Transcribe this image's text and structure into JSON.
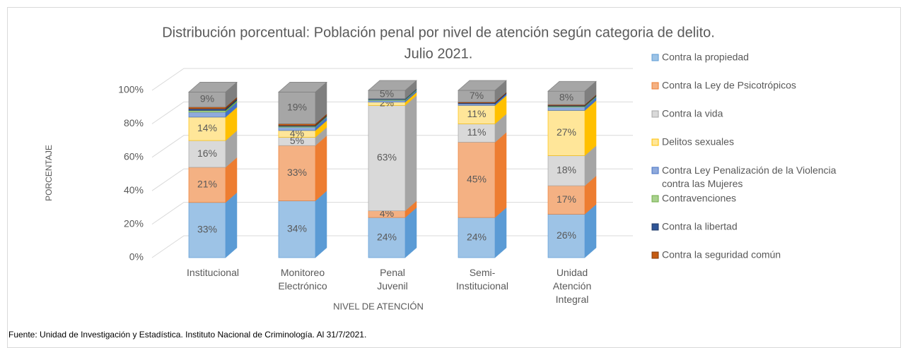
{
  "chart_data": {
    "type": "bar3d_stacked",
    "title": [
      "Distribución porcentual: Población penal por nivel de atención según categoria de delito.",
      "Julio 2021."
    ],
    "xlabel": "NIVEL DE ATENCIÓN",
    "ylabel": "PORCENTAJE",
    "categories": [
      "Institucional",
      "Monitoreo Electrónico",
      "Penal Juvenil",
      "Semi-Institucional",
      "Unidad Atención Integral"
    ],
    "ylim": [
      0,
      100
    ],
    "yticks": [
      {
        "value": 0,
        "label": "0%"
      },
      {
        "value": 20,
        "label": "20%"
      },
      {
        "value": 40,
        "label": "40%"
      },
      {
        "value": 60,
        "label": "60%"
      },
      {
        "value": 80,
        "label": "80%"
      },
      {
        "value": 100,
        "label": "100%"
      }
    ],
    "grid": true,
    "legend": "right",
    "series": [
      {
        "name": "Contra la propiedad",
        "color": "#9dc3e6",
        "edge": "#5b9bd5",
        "values": [
          33,
          34,
          24,
          24,
          26
        ],
        "value_labels": [
          "33%",
          "34%",
          "24%",
          "24%",
          "26%"
        ]
      },
      {
        "name": "Contra la Ley de Psicotrópicos",
        "color": "#f4b183",
        "edge": "#ed7d31",
        "values": [
          21,
          33,
          4,
          45,
          17
        ],
        "value_labels": [
          "21%",
          "33%",
          "4%",
          "45%",
          "17%"
        ]
      },
      {
        "name": "Contra la vida",
        "color": "#d9d9d9",
        "edge": "#a5a5a5",
        "values": [
          16,
          5,
          63,
          11,
          18
        ],
        "value_labels": [
          "16%",
          "5%",
          "63%",
          "11%",
          "18%"
        ]
      },
      {
        "name": "Delitos sexuales",
        "color": "#ffe699",
        "edge": "#ffc000",
        "values": [
          14,
          4,
          2,
          11,
          27
        ],
        "value_labels": [
          "14%",
          "4%",
          "2%",
          "11%",
          "27%"
        ]
      },
      {
        "name": "Contra Ley Penalización de la Violencia contra las Mujeres",
        "color": "#8faadc",
        "edge": "#4472c4",
        "values": [
          3,
          2,
          1,
          1,
          2
        ],
        "value_labels": [
          null,
          null,
          null,
          null,
          null
        ]
      },
      {
        "name": "Contravenciones",
        "color": "#a9d18e",
        "edge": "#70ad47",
        "values": [
          1,
          0.5,
          0.5,
          0,
          0.5
        ],
        "value_labels": [
          null,
          null,
          null,
          null,
          null
        ]
      },
      {
        "name": "Contra la libertad",
        "color": "#2f5597",
        "edge": "#1f3864",
        "values": [
          1,
          0.5,
          0.5,
          0.5,
          0.5
        ],
        "value_labels": [
          null,
          null,
          null,
          null,
          null
        ]
      },
      {
        "name": "Contra la seguridad común",
        "color": "#c55a11",
        "edge": "#843c0c",
        "values": [
          1,
          1,
          0,
          0.5,
          0.5
        ],
        "value_labels": [
          null,
          null,
          null,
          null,
          null
        ]
      },
      {
        "color": "#a6a6a6",
        "edge": "#7f7f7f",
        "values": [
          9,
          19,
          5,
          7,
          8
        ],
        "value_labels": [
          "9%",
          "19%",
          "5%",
          "7%",
          "8%"
        ]
      }
    ]
  },
  "footer": "Fuente: Unidad de Investigación y Estadística. Instituto Nacional de Criminología. Al 31/7/2021."
}
